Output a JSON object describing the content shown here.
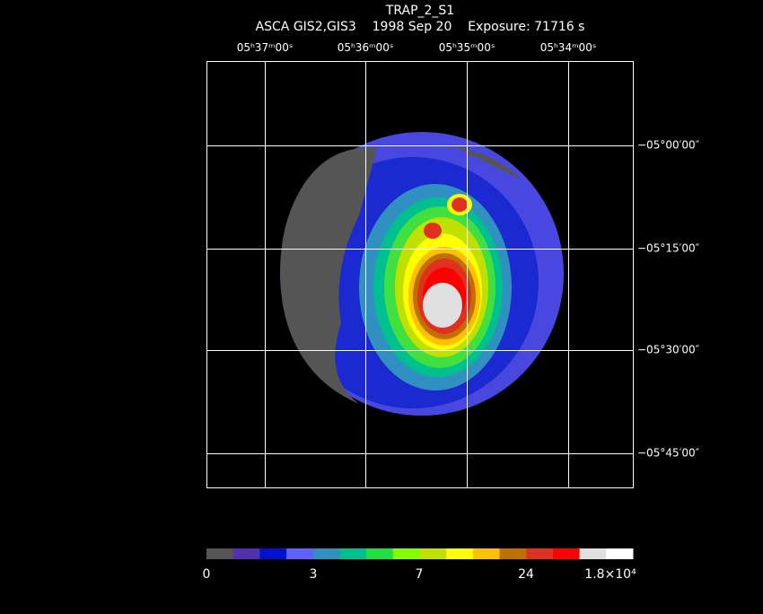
{
  "header": {
    "title": "TRAP_2_S1",
    "subtitle": "ASCA GIS2,GIS3    1998 Sep 20    Exposure: 71716 s"
  },
  "ra_labels": [
    "05ʰ37ᵐ00ˢ",
    "05ʰ36ᵐ00ˢ",
    "05ʰ35ᵐ00ˢ",
    "05ʰ34ᵐ00ˢ"
  ],
  "dec_labels": [
    "−05°00′00″",
    "−05°15′00″",
    "−05°30′00″",
    "−05°45′00″"
  ],
  "colorbar_labels": [
    "0",
    "3",
    "7",
    "24",
    "1.8×10⁴"
  ]
}
